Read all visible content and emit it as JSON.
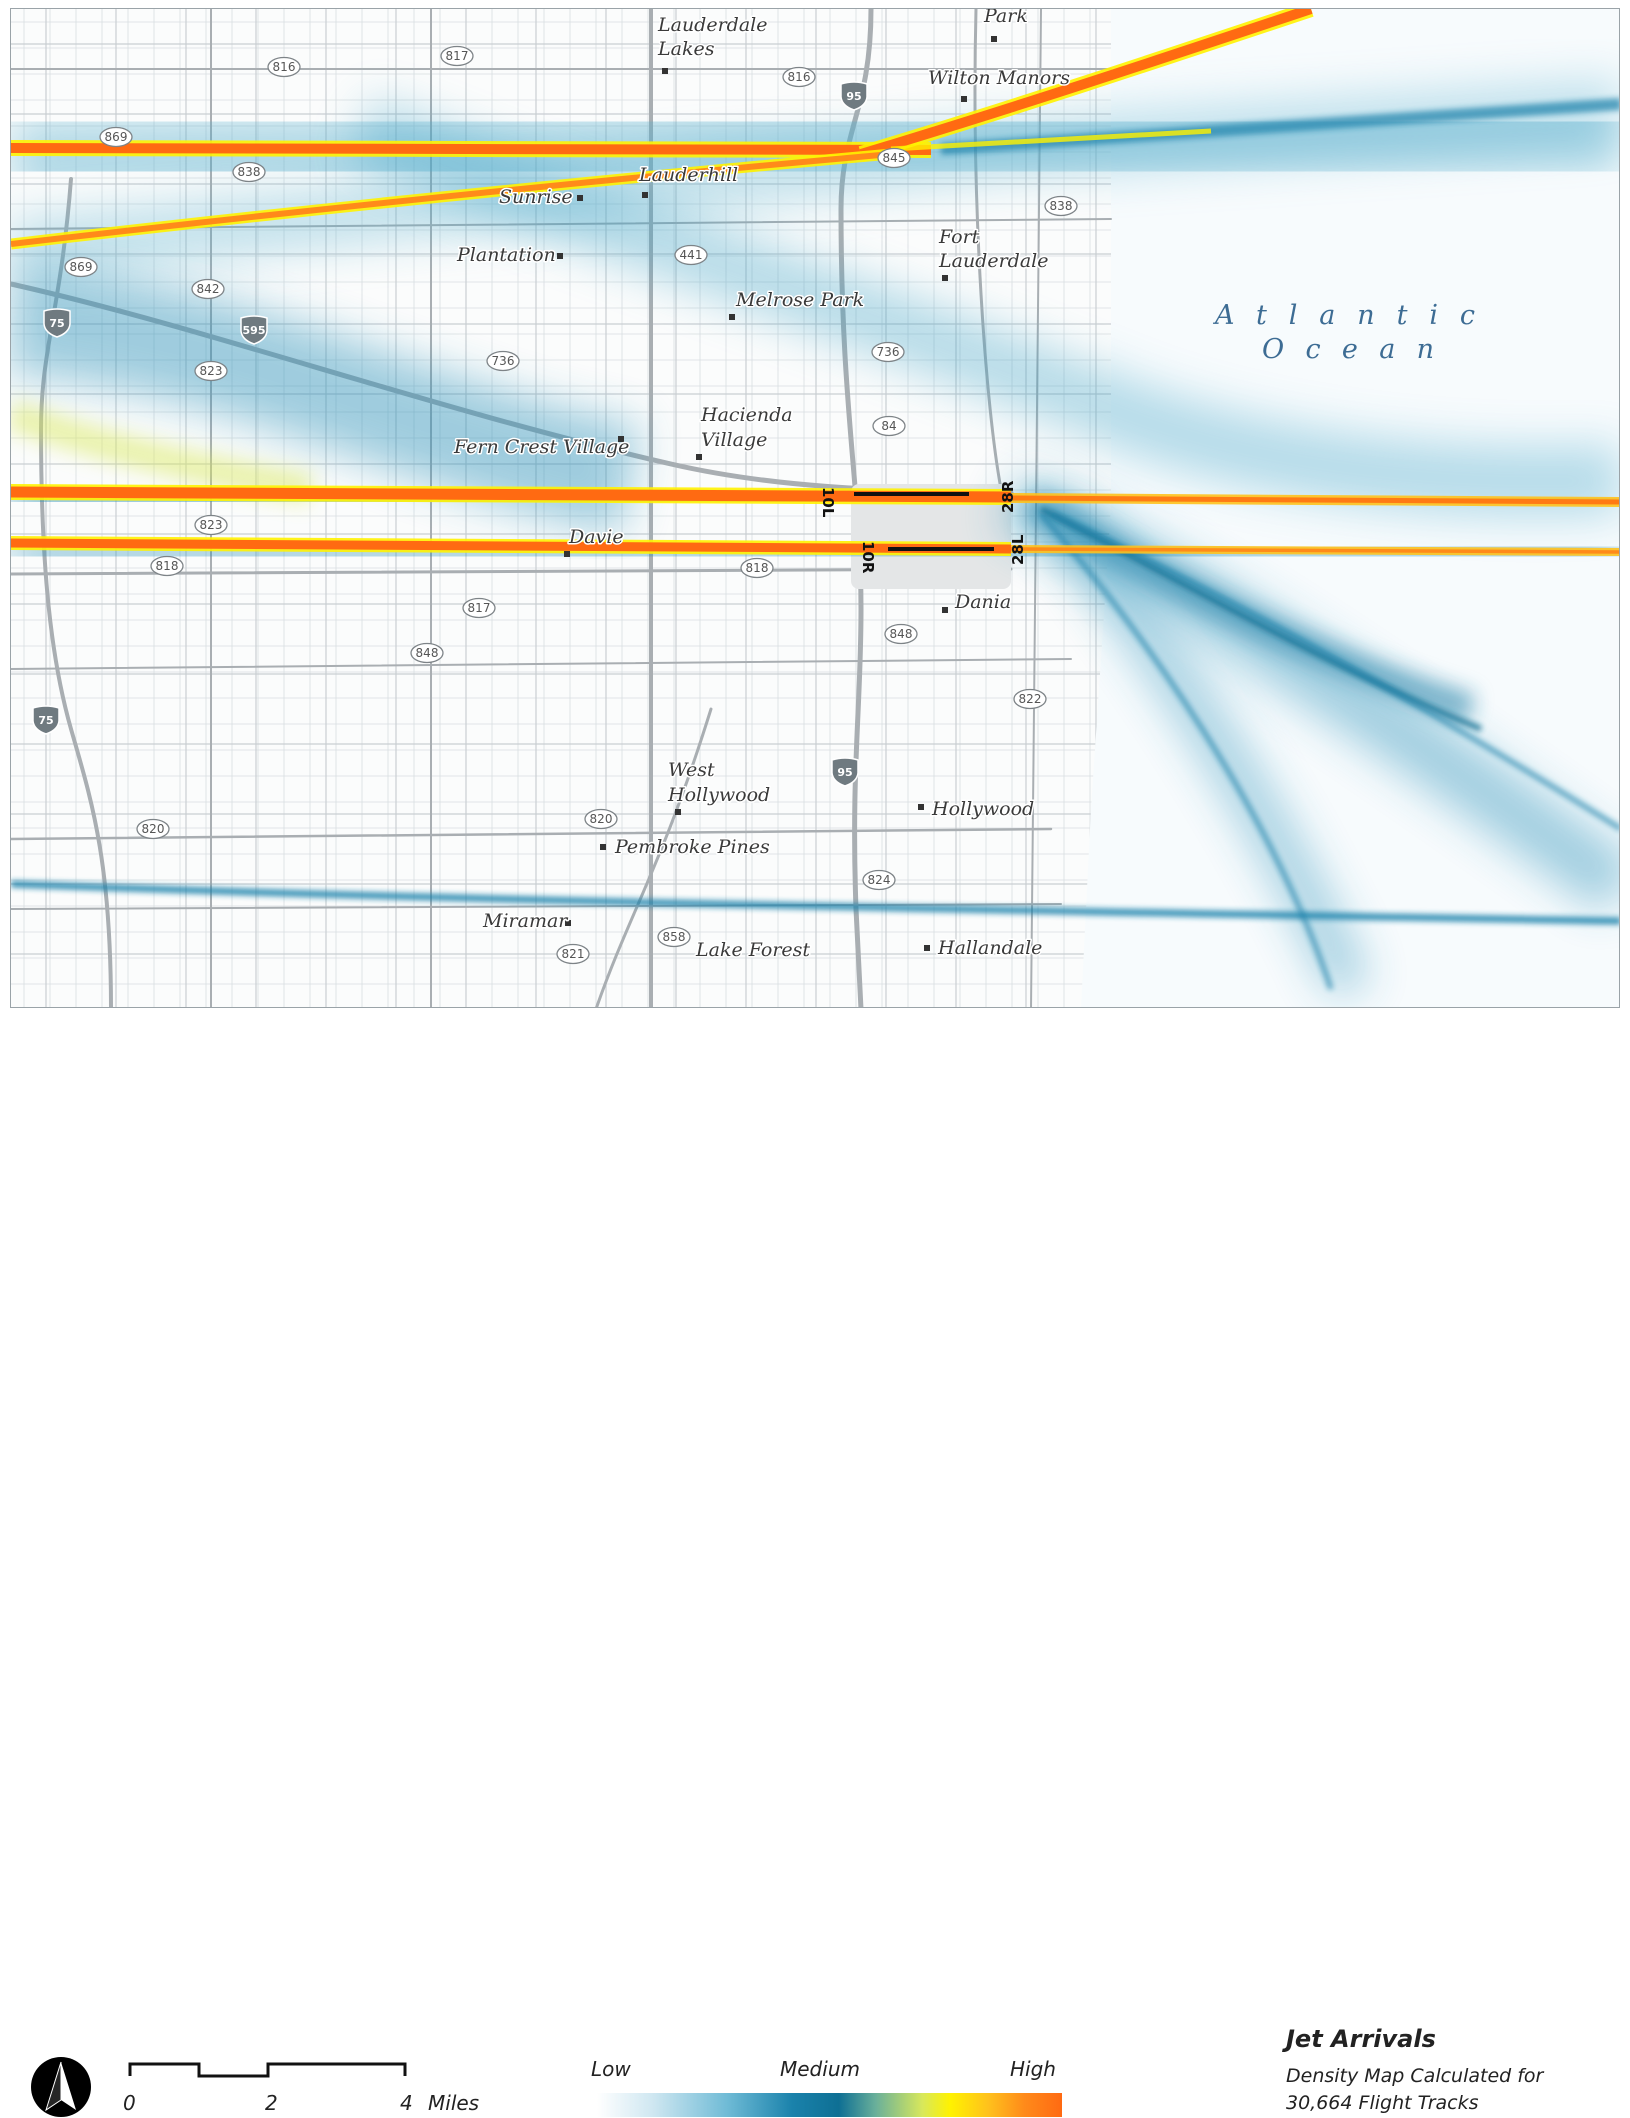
{
  "map": {
    "places": [
      {
        "id": "lauderdale-lakes-1",
        "text": "Lauderdale"
      },
      {
        "id": "lauderdale-lakes-2",
        "text": "Lakes"
      },
      {
        "id": "park",
        "text": "Park"
      },
      {
        "id": "wilton-manors",
        "text": "Wilton Manors"
      },
      {
        "id": "lauderhill",
        "text": "Lauderhill"
      },
      {
        "id": "sunrise",
        "text": "Sunrise"
      },
      {
        "id": "plantation",
        "text": "Plantation"
      },
      {
        "id": "fort-lauderdale-1",
        "text": "Fort"
      },
      {
        "id": "fort-lauderdale-2",
        "text": "Lauderdale"
      },
      {
        "id": "melrose-park",
        "text": "Melrose Park"
      },
      {
        "id": "hacienda-village-1",
        "text": "Hacienda"
      },
      {
        "id": "hacienda-village-2",
        "text": "Village"
      },
      {
        "id": "fern-crest-village",
        "text": "Fern Crest Village"
      },
      {
        "id": "davie",
        "text": "Davie"
      },
      {
        "id": "dania",
        "text": "Dania"
      },
      {
        "id": "west-hollywood-1",
        "text": "West"
      },
      {
        "id": "west-hollywood-2",
        "text": "Hollywood"
      },
      {
        "id": "hollywood",
        "text": "Hollywood"
      },
      {
        "id": "pembroke-pines",
        "text": "Pembroke Pines"
      },
      {
        "id": "miramar",
        "text": "Miramar"
      },
      {
        "id": "lake-forest",
        "text": "Lake Forest"
      },
      {
        "id": "hallandale",
        "text": "Hallandale"
      }
    ],
    "ocean_label_1": "Atlantic",
    "ocean_label_2": "Ocean",
    "state_routes": [
      "816",
      "817",
      "816",
      "869",
      "838",
      "845",
      "838",
      "869",
      "842",
      "441",
      "736",
      "736",
      "823",
      "84",
      "823",
      "818",
      "818",
      "817",
      "848",
      "848",
      "822",
      "820",
      "820",
      "824",
      "858",
      "821"
    ],
    "interstates": [
      "95",
      "75",
      "595",
      "75",
      "95"
    ],
    "runways": {
      "north_left": "10L",
      "north_right": "28R",
      "south_left": "10R",
      "south_right": "28L"
    },
    "colors": {
      "low": "#ffffff",
      "medium": "#0e6f94",
      "mid_high": "#fff200",
      "high": "#ff6a12",
      "road_major": "#a9aeb2",
      "water_text": "#3d6c94"
    }
  },
  "legend": {
    "north_arrow_icon": "north-arrow-icon",
    "scale_labels": [
      "0",
      "2",
      "4"
    ],
    "scale_unit": "Miles",
    "ramp_low": "Low",
    "ramp_medium": "Medium",
    "ramp_high": "High",
    "title": "Jet Arrivals",
    "subtitle_1": "Density Map Calculated for",
    "subtitle_2": "30,664 Flight Tracks"
  }
}
